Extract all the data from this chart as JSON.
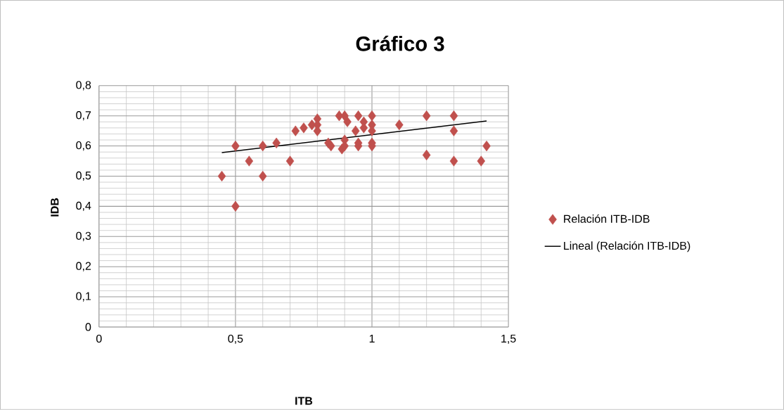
{
  "chart_data": {
    "type": "scatter",
    "title": "Gráfico 3",
    "xlabel": "ITB",
    "ylabel": "IDB",
    "xlim": [
      0,
      1.5
    ],
    "ylim": [
      0,
      0.8
    ],
    "xticks": [
      0,
      {
        "value": 0.5,
        "label": "0,5"
      },
      1,
      {
        "value": 1.5,
        "label": "1,5"
      }
    ],
    "yticks": [
      0,
      {
        "value": 0.1,
        "label": "0,1"
      },
      {
        "value": 0.2,
        "label": "0,2"
      },
      {
        "value": 0.3,
        "label": "0,3"
      },
      {
        "value": 0.4,
        "label": "0,4"
      },
      {
        "value": 0.5,
        "label": "0,5"
      },
      {
        "value": 0.6,
        "label": "0,6"
      },
      {
        "value": 0.7,
        "label": "0,7"
      },
      {
        "value": 0.8,
        "label": "0,8"
      }
    ],
    "grid": true,
    "legend": "right",
    "series": [
      {
        "name": "Relación ITB-IDB",
        "marker": "diamond",
        "color": "#c0504d",
        "x": [
          0.45,
          0.5,
          0.5,
          0.55,
          0.6,
          0.6,
          0.65,
          0.7,
          0.72,
          0.75,
          0.78,
          0.8,
          0.8,
          0.8,
          0.84,
          0.85,
          0.88,
          0.9,
          0.89,
          0.9,
          0.9,
          0.91,
          0.94,
          0.95,
          0.95,
          0.95,
          0.97,
          0.97,
          1.0,
          1.0,
          1.0,
          1.0,
          1.0,
          1.1,
          1.2,
          1.2,
          1.3,
          1.3,
          1.3,
          1.4,
          1.42
        ],
        "values": [
          0.5,
          0.6,
          0.4,
          0.55,
          0.6,
          0.5,
          0.61,
          0.55,
          0.65,
          0.66,
          0.67,
          0.69,
          0.67,
          0.65,
          0.61,
          0.6,
          0.7,
          0.7,
          0.59,
          0.6,
          0.62,
          0.68,
          0.65,
          0.7,
          0.61,
          0.6,
          0.66,
          0.68,
          0.7,
          0.67,
          0.65,
          0.61,
          0.6,
          0.67,
          0.7,
          0.57,
          0.7,
          0.65,
          0.55,
          0.55,
          0.6
        ]
      },
      {
        "name": "Lineal (Relación ITB-IDB)",
        "type": "line",
        "color": "#000000",
        "x": [
          0.45,
          1.42
        ],
        "values": [
          0.578,
          0.683
        ]
      }
    ]
  }
}
